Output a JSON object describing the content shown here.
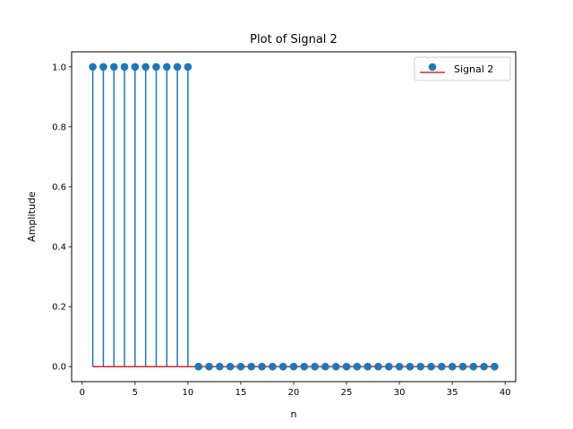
{
  "chart_data": {
    "type": "stem",
    "title": "Plot of Signal 2",
    "xlabel": "n",
    "ylabel": "Amplitude",
    "xlim": [
      -1,
      41
    ],
    "ylim": [
      -0.05,
      1.05
    ],
    "xticks": [
      0,
      5,
      10,
      15,
      20,
      25,
      30,
      35,
      40
    ],
    "yticks": [
      0.0,
      0.2,
      0.4,
      0.6,
      0.8,
      1.0
    ],
    "xtick_labels": [
      "0",
      "5",
      "10",
      "15",
      "20",
      "25",
      "30",
      "35",
      "40"
    ],
    "ytick_labels": [
      "0.0",
      "0.2",
      "0.4",
      "0.6",
      "0.8",
      "1.0"
    ],
    "legend": {
      "position": "top-right",
      "label": "Signal 2"
    },
    "grid": false,
    "colors": {
      "stem": "#1f77b4",
      "baseline": "#d62728"
    },
    "series": [
      {
        "name": "Signal 2",
        "x": [
          1,
          2,
          3,
          4,
          5,
          6,
          7,
          8,
          9,
          10,
          11,
          12,
          13,
          14,
          15,
          16,
          17,
          18,
          19,
          20,
          21,
          22,
          23,
          24,
          25,
          26,
          27,
          28,
          29,
          30,
          31,
          32,
          33,
          34,
          35,
          36,
          37,
          38,
          39
        ],
        "y": [
          1,
          1,
          1,
          1,
          1,
          1,
          1,
          1,
          1,
          1,
          0,
          0,
          0,
          0,
          0,
          0,
          0,
          0,
          0,
          0,
          0,
          0,
          0,
          0,
          0,
          0,
          0,
          0,
          0,
          0,
          0,
          0,
          0,
          0,
          0,
          0,
          0,
          0,
          0
        ]
      }
    ]
  }
}
